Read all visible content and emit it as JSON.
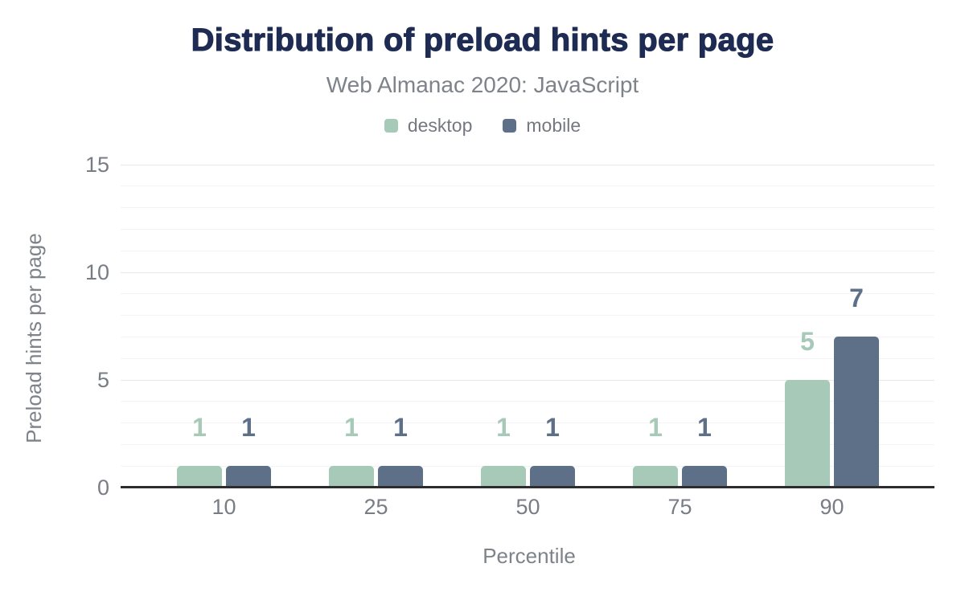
{
  "chart": {
    "title": "Distribution of preload hints per page",
    "subtitle": "Web Almanac 2020: JavaScript",
    "x_axis_title": "Percentile",
    "y_axis_title": "Preload hints per page"
  },
  "chart_data": {
    "type": "bar",
    "title": "Distribution of preload hints per page",
    "subtitle": "Web Almanac 2020: JavaScript",
    "categories": [
      "10",
      "25",
      "50",
      "75",
      "90"
    ],
    "series": [
      {
        "name": "desktop",
        "color": "#a7c9b8",
        "values": [
          1,
          1,
          1,
          1,
          5
        ]
      },
      {
        "name": "mobile",
        "color": "#5e7088",
        "values": [
          1,
          1,
          1,
          1,
          7
        ]
      }
    ],
    "xlabel": "Percentile",
    "ylabel": "Preload hints per page",
    "ylim": [
      0,
      15
    ],
    "y_tick_values": [
      0,
      5,
      10,
      15
    ],
    "y_minor_grid_step": 1,
    "grid": "horizontal",
    "legend_position": "top",
    "value_labels": true
  },
  "colors": {
    "background": "#ffffff",
    "title_text": "#1e2b52",
    "subtitle_text": "#7e838a",
    "axis_text": "#787d85",
    "grid_minor": "#f4f4f6",
    "grid_major": "#e8e8eb",
    "baseline": "#2d2d2f"
  }
}
